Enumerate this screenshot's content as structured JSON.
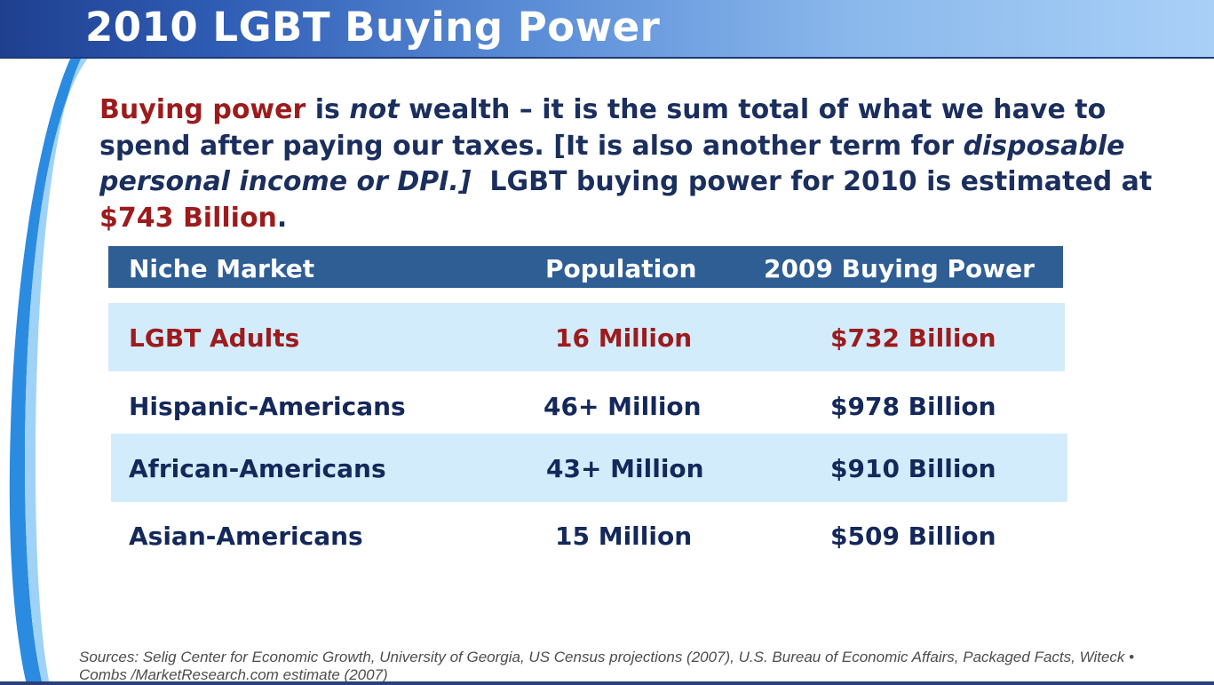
{
  "slide": {
    "title": "2010 LGBT Buying Power",
    "intro": {
      "term": "Buying power",
      "t1": " is ",
      "not": "not",
      "t2": " wealth – it is the sum total of what we have to spend after paying our taxes. [It is also another term for ",
      "italic_def": "disposable personal income or DPI.]",
      "t3": "  LGBT buying power for 2010 is estimated at ",
      "amount": "$743 Billion",
      "t4": "."
    },
    "table": {
      "headers": [
        "Niche Market",
        "Population",
        "2009 Buying Power"
      ],
      "rows": [
        [
          "LGBT Adults",
          "16 Million",
          "$732 Billion"
        ],
        [
          "Hispanic-Americans",
          "46+ Million",
          "$978 Billion"
        ],
        [
          "African-Americans",
          "43+ Million",
          "$910 Billion"
        ],
        [
          "Asian-Americans",
          "15 Million",
          "$509 Billion"
        ]
      ]
    },
    "sources": "Sources: Selig Center for Economic Growth, University of Georgia, US Census projections (2007), U.S. Bureau of Economic Affairs, Packaged Facts, Witeck • Combs /MarketResearch.com estimate (2007)"
  },
  "colors": {
    "title_bar": "#2f5db5",
    "accent_red": "#9c1b1d",
    "text_navy": "#1b2f5e",
    "table_header": "#2f5e95",
    "row_shade": "#d3ecfb"
  }
}
